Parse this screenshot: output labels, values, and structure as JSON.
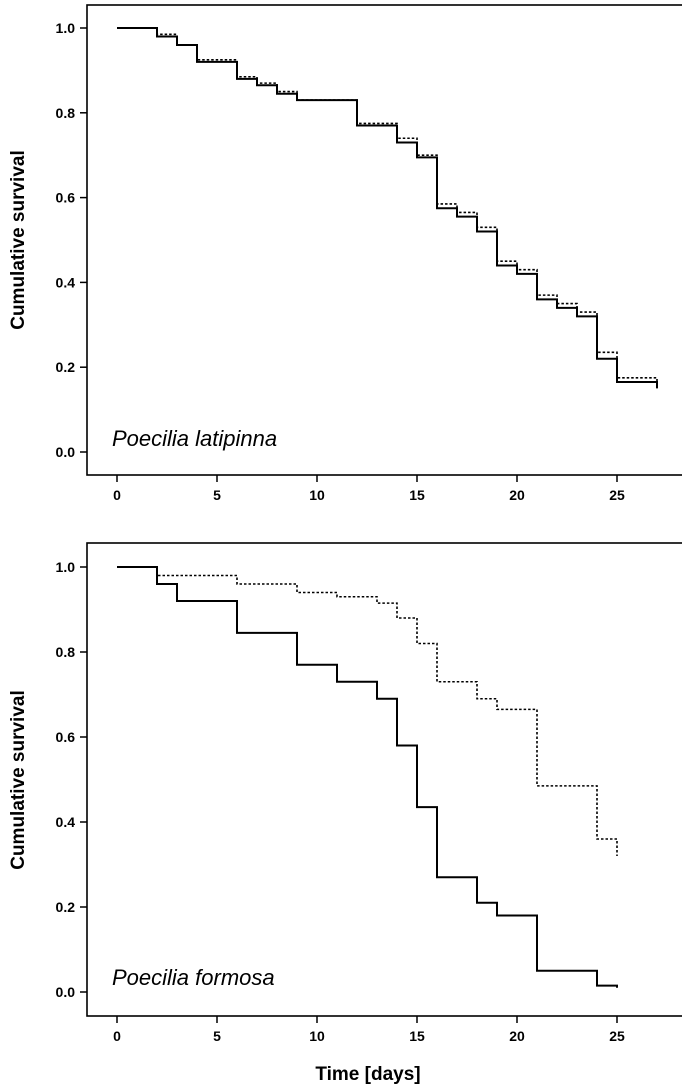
{
  "chart_data": [
    {
      "type": "line",
      "step": "post",
      "panel_label": "Poecilia latipinna",
      "ylabel": "Cumulative survival",
      "xlabel": "",
      "xlim": [
        -1.5,
        28.5
      ],
      "ylim": [
        -0.04,
        1.05
      ],
      "xticks": [
        0,
        5,
        10,
        15,
        20,
        25
      ],
      "xtick_labels": [
        "0",
        "5",
        "10",
        "15",
        "20",
        "25"
      ],
      "yticks": [
        0,
        0.2,
        0.4,
        0.6,
        0.8,
        1.0
      ],
      "ytick_labels": [
        "0.0",
        "0.2",
        "0.4",
        "0.6",
        "0.8",
        "1.0"
      ],
      "series": [
        {
          "style": "solid",
          "x": [
            0,
            2,
            3,
            4,
            6,
            7,
            8,
            9,
            12,
            14,
            15,
            16,
            17,
            18,
            19,
            20,
            21,
            22,
            23,
            24,
            25,
            27
          ],
          "y": [
            1.0,
            0.98,
            0.96,
            0.92,
            0.88,
            0.865,
            0.845,
            0.83,
            0.77,
            0.73,
            0.695,
            0.575,
            0.555,
            0.52,
            0.44,
            0.42,
            0.36,
            0.34,
            0.32,
            0.22,
            0.165,
            0.15
          ]
        },
        {
          "style": "dotted",
          "x": [
            0,
            2,
            3,
            4,
            6,
            7,
            8,
            9,
            12,
            14,
            15,
            16,
            17,
            18,
            19,
            20,
            21,
            22,
            23,
            24,
            25,
            27
          ],
          "y": [
            1.0,
            0.985,
            0.96,
            0.925,
            0.885,
            0.87,
            0.85,
            0.83,
            0.775,
            0.74,
            0.7,
            0.585,
            0.565,
            0.53,
            0.45,
            0.43,
            0.37,
            0.35,
            0.33,
            0.235,
            0.175,
            0.16
          ]
        }
      ]
    },
    {
      "type": "line",
      "step": "post",
      "panel_label": "Poecilia formosa",
      "ylabel": "Cumulative survival",
      "xlabel": "Time [days]",
      "xlim": [
        -1.5,
        28.5
      ],
      "ylim": [
        -0.04,
        1.05
      ],
      "xticks": [
        0,
        5,
        10,
        15,
        20,
        25
      ],
      "xtick_labels": [
        "0",
        "5",
        "10",
        "15",
        "20",
        "25"
      ],
      "yticks": [
        0,
        0.2,
        0.4,
        0.6,
        0.8,
        1.0
      ],
      "ytick_labels": [
        "0.0",
        "0.2",
        "0.4",
        "0.6",
        "0.8",
        "1.0"
      ],
      "series": [
        {
          "style": "solid",
          "x": [
            0,
            2,
            3,
            6,
            9,
            11,
            13,
            14,
            15,
            16,
            18,
            19,
            21,
            24,
            25
          ],
          "y": [
            1.0,
            0.96,
            0.92,
            0.845,
            0.77,
            0.73,
            0.69,
            0.58,
            0.435,
            0.27,
            0.21,
            0.18,
            0.05,
            0.015,
            0.01
          ]
        },
        {
          "style": "dotted",
          "x": [
            0,
            2,
            6,
            9,
            11,
            13,
            14,
            15,
            16,
            18,
            19,
            21,
            24,
            25
          ],
          "y": [
            1.0,
            0.98,
            0.96,
            0.94,
            0.93,
            0.915,
            0.88,
            0.82,
            0.73,
            0.69,
            0.665,
            0.485,
            0.36,
            0.32
          ]
        }
      ]
    }
  ]
}
